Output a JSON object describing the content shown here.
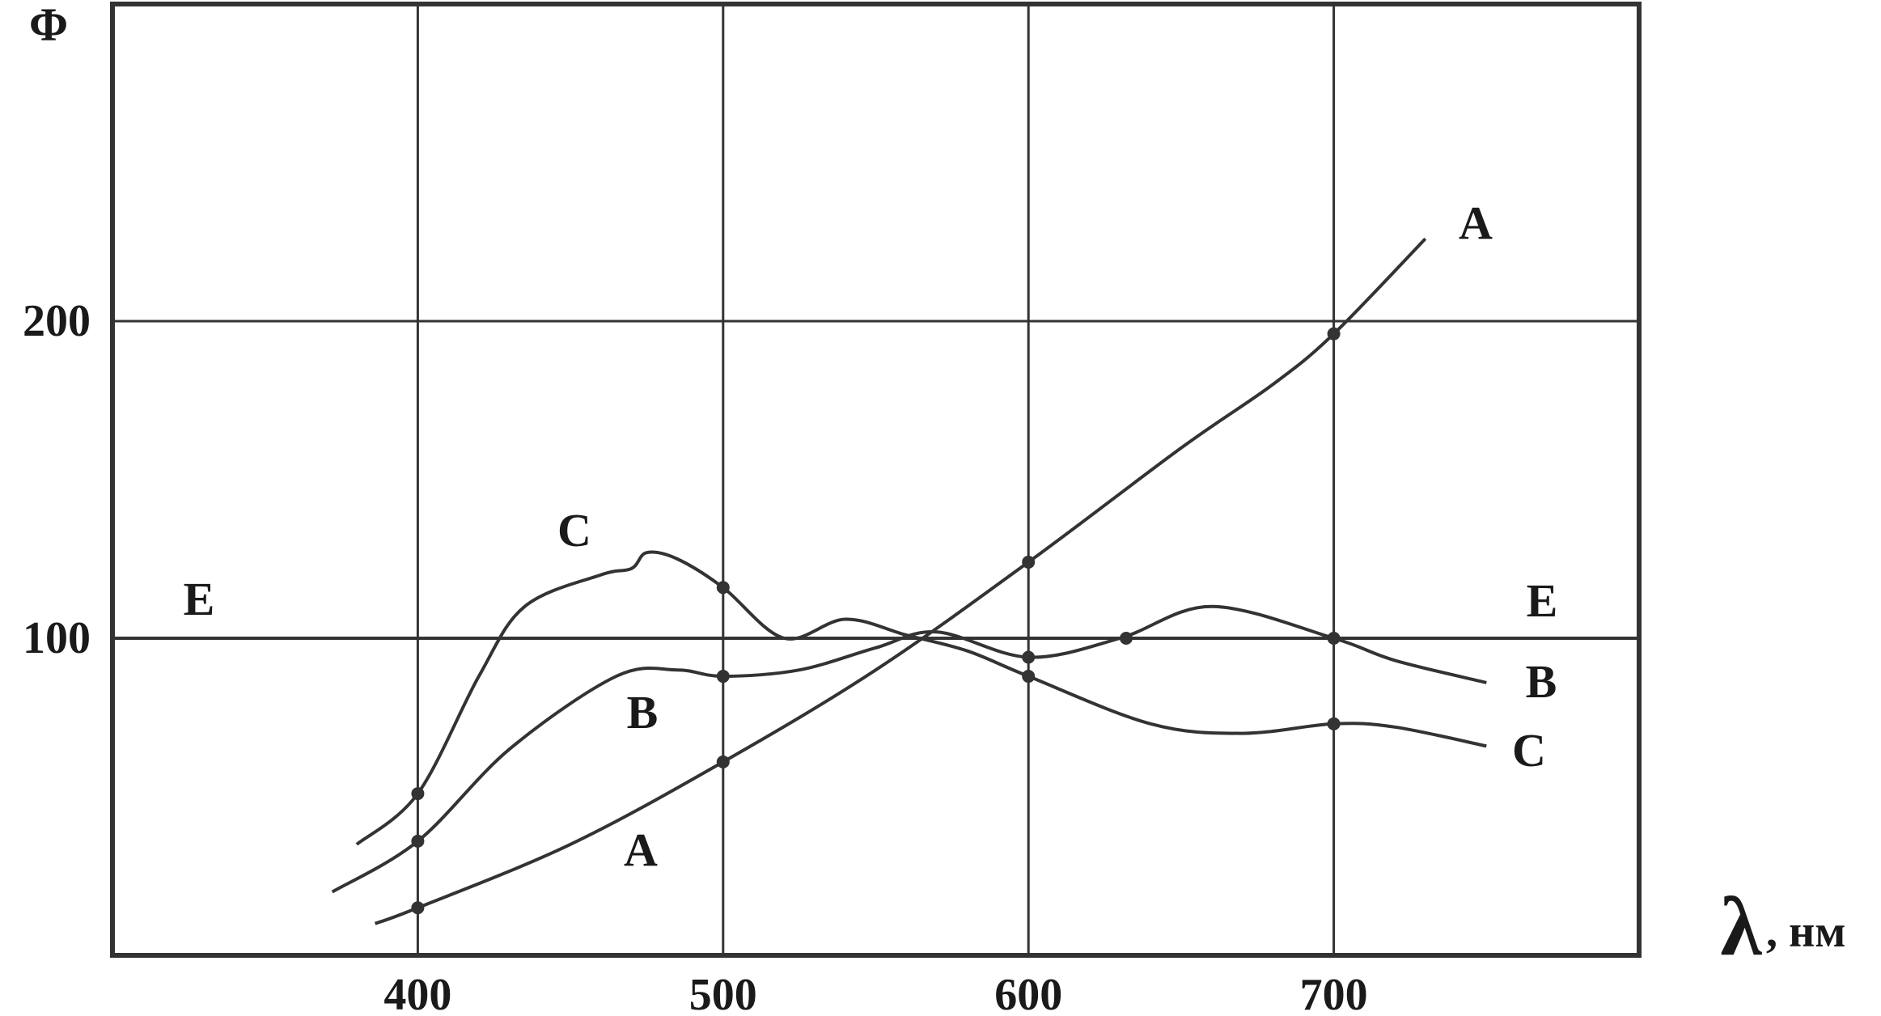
{
  "chart_data": {
    "type": "line",
    "title": "",
    "ylabel": "Φ",
    "xlabel_symbol": "λ",
    "xlabel_unit": ", нм",
    "xlim": [
      300,
      800
    ],
    "ylim": [
      0,
      300
    ],
    "x_ticks": [
      400,
      500,
      600,
      700
    ],
    "x_tick_labels": [
      "400",
      "500",
      "600",
      "700"
    ],
    "y_ticks": [
      100,
      200
    ],
    "y_tick_labels": [
      "100",
      "200"
    ],
    "grid": true,
    "line_color": "#333333",
    "series": [
      {
        "name": "A",
        "start_label": "A",
        "end_label": "A",
        "points": [
          [
            386,
            10
          ],
          [
            400,
            15
          ],
          [
            450,
            35
          ],
          [
            500,
            61
          ],
          [
            550,
            90
          ],
          [
            600,
            124
          ],
          [
            650,
            160
          ],
          [
            680,
            180
          ],
          [
            700,
            196
          ],
          [
            730,
            226
          ]
        ],
        "markers": [
          [
            400,
            15
          ],
          [
            500,
            61
          ],
          [
            600,
            124
          ],
          [
            700,
            196
          ]
        ]
      },
      {
        "name": "B",
        "start_label": "B",
        "end_label": "B",
        "points": [
          [
            372,
            20
          ],
          [
            400,
            36
          ],
          [
            430,
            65
          ],
          [
            465,
            88
          ],
          [
            485,
            90
          ],
          [
            500,
            88
          ],
          [
            525,
            90
          ],
          [
            550,
            97
          ],
          [
            570,
            102
          ],
          [
            600,
            94
          ],
          [
            630,
            100
          ],
          [
            660,
            110
          ],
          [
            700,
            100
          ],
          [
            720,
            93
          ],
          [
            750,
            86
          ]
        ],
        "markers": [
          [
            400,
            36
          ],
          [
            500,
            88
          ],
          [
            600,
            94
          ],
          [
            632,
            100
          ],
          [
            700,
            100
          ]
        ]
      },
      {
        "name": "C",
        "start_label": "C",
        "end_label": "C",
        "points": [
          [
            380,
            35
          ],
          [
            400,
            51
          ],
          [
            420,
            88
          ],
          [
            435,
            110
          ],
          [
            460,
            120
          ],
          [
            470,
            122
          ],
          [
            475,
            127
          ],
          [
            485,
            125
          ],
          [
            500,
            116
          ],
          [
            520,
            100
          ],
          [
            540,
            106
          ],
          [
            560,
            101
          ],
          [
            580,
            96
          ],
          [
            600,
            88
          ],
          [
            640,
            73
          ],
          [
            670,
            70
          ],
          [
            700,
            73
          ],
          [
            720,
            72
          ],
          [
            750,
            66
          ]
        ],
        "markers": [
          [
            400,
            51
          ],
          [
            500,
            116
          ],
          [
            600,
            88
          ],
          [
            700,
            73
          ]
        ]
      },
      {
        "name": "E",
        "start_label": "E",
        "end_label": "E",
        "points": [
          [
            300,
            100
          ],
          [
            800,
            100
          ]
        ],
        "markers": []
      }
    ]
  }
}
